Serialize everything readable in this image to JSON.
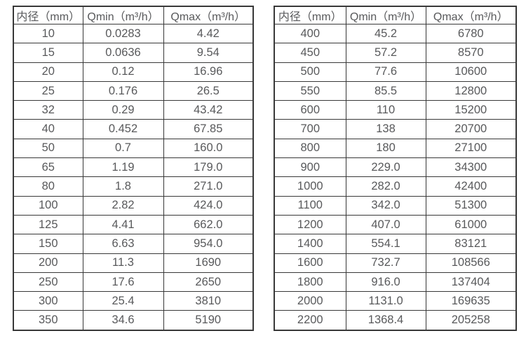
{
  "colors": {
    "border": "#383838",
    "text": "#58595b",
    "background": "#ffffff"
  },
  "chart_data": [
    {
      "type": "table",
      "position": "left",
      "columns": [
        "内径（mm）",
        "Qmin（m³/h）",
        "Qmax（m³/h）"
      ],
      "rows": [
        [
          "10",
          "0.0283",
          "4.42"
        ],
        [
          "15",
          "0.0636",
          "9.54"
        ],
        [
          "20",
          "0.12",
          "16.96"
        ],
        [
          "25",
          "0.176",
          "26.5"
        ],
        [
          "32",
          "0.29",
          "43.42"
        ],
        [
          "40",
          "0.452",
          "67.85"
        ],
        [
          "50",
          "0.7",
          "160.0"
        ],
        [
          "65",
          "1.19",
          "179.0"
        ],
        [
          "80",
          "1.8",
          "271.0"
        ],
        [
          "100",
          "2.82",
          "424.0"
        ],
        [
          "125",
          "4.41",
          "662.0"
        ],
        [
          "150",
          "6.63",
          "954.0"
        ],
        [
          "200",
          "11.3",
          "1690"
        ],
        [
          "250",
          "17.6",
          "2650"
        ],
        [
          "300",
          "25.4",
          "3810"
        ],
        [
          "350",
          "34.6",
          "5190"
        ]
      ]
    },
    {
      "type": "table",
      "position": "right",
      "columns": [
        "内径（mm）",
        "Qmin（m³/h）",
        "Qmax（m³/h）"
      ],
      "rows": [
        [
          "400",
          "45.2",
          "6780"
        ],
        [
          "450",
          "57.2",
          "8570"
        ],
        [
          "500",
          "77.6",
          "10600"
        ],
        [
          "550",
          "85.5",
          "12800"
        ],
        [
          "600",
          "110",
          "15200"
        ],
        [
          "700",
          "138",
          "20700"
        ],
        [
          "800",
          "180",
          "27100"
        ],
        [
          "900",
          "229.0",
          "34300"
        ],
        [
          "1000",
          "282.0",
          "42400"
        ],
        [
          "1100",
          "342.0",
          "51300"
        ],
        [
          "1200",
          "407.0",
          "61000"
        ],
        [
          "1400",
          "554.1",
          "83121"
        ],
        [
          "1600",
          "732.7",
          "108566"
        ],
        [
          "1800",
          "916.0",
          "137404"
        ],
        [
          "2000",
          "1131.0",
          "169635"
        ],
        [
          "2200",
          "1368.4",
          "205258"
        ]
      ]
    }
  ]
}
